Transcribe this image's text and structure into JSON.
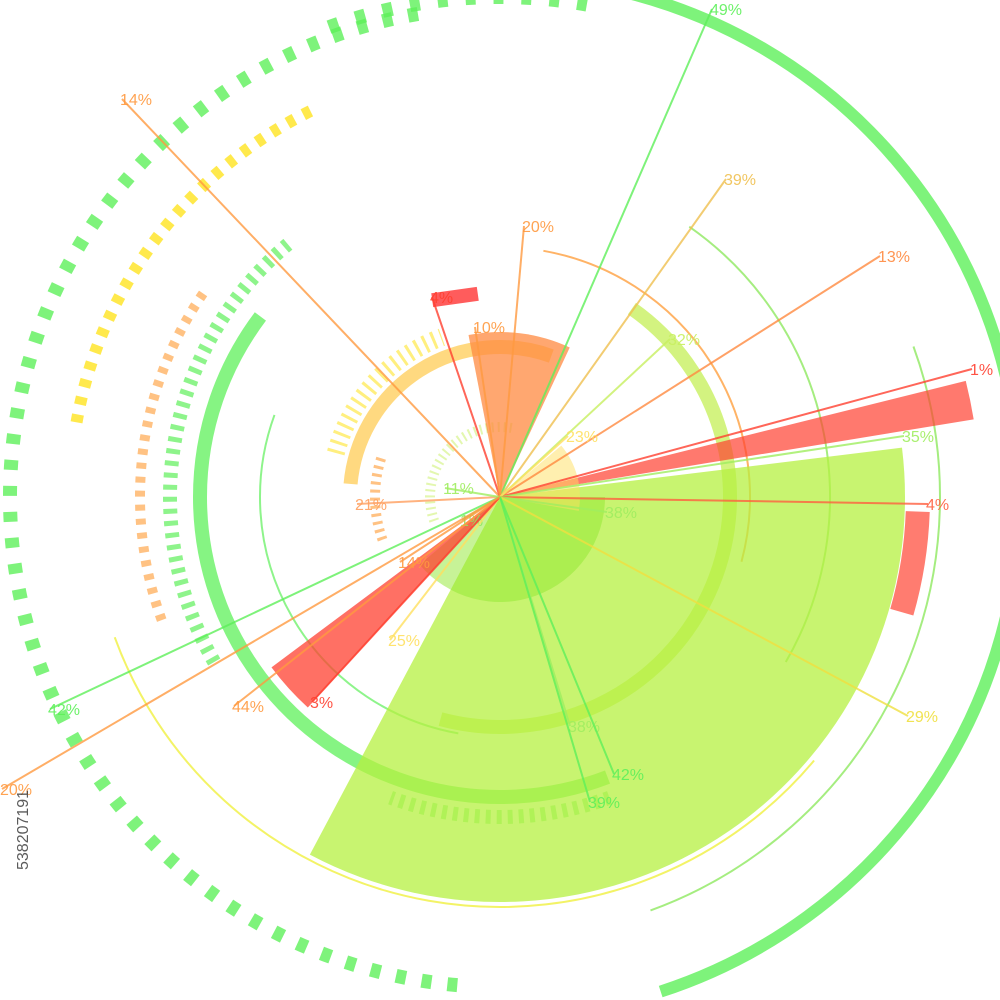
{
  "labels": [
    "49%",
    "14%",
    "39%",
    "20%",
    "13%",
    "4%",
    "10%",
    "32%",
    "1%",
    "35%",
    "23%",
    "4%",
    "38%",
    "21%",
    "11%",
    "1%",
    "14%",
    "42%",
    "25%",
    "29%",
    "44%",
    "3%",
    "38%",
    "42%",
    "39%",
    "20%"
  ],
  "watermark": "538207191"
}
